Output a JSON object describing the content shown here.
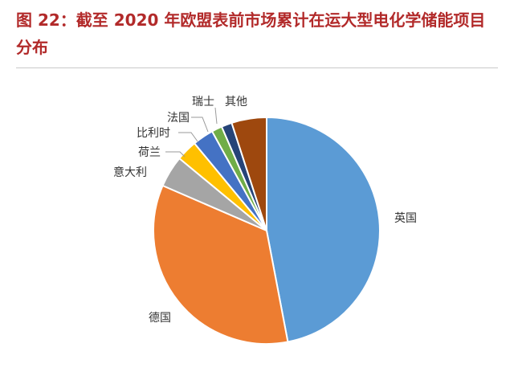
{
  "title": "图 22：截至 2020 年欧盟表前市场累计在运大型电化学储能项目分布",
  "chart_data": {
    "type": "pie",
    "slices": [
      {
        "label": "英国",
        "value": 47.0,
        "color": "#5b9bd5"
      },
      {
        "label": "德国",
        "value": 34.5,
        "color": "#ed7d31"
      },
      {
        "label": "意大利",
        "value": 4.5,
        "color": "#a5a5a5"
      },
      {
        "label": "荷兰",
        "value": 3.0,
        "color": "#ffc000"
      },
      {
        "label": "比利时",
        "value": 3.0,
        "color": "#4472c4"
      },
      {
        "label": "法国",
        "value": 1.5,
        "color": "#70ad47"
      },
      {
        "label": "瑞士",
        "value": 1.5,
        "color": "#264478"
      },
      {
        "label": "其他",
        "value": 5.0,
        "color": "#9e480e"
      }
    ],
    "start_angle": "12 o'clock",
    "direction": "clockwise"
  }
}
